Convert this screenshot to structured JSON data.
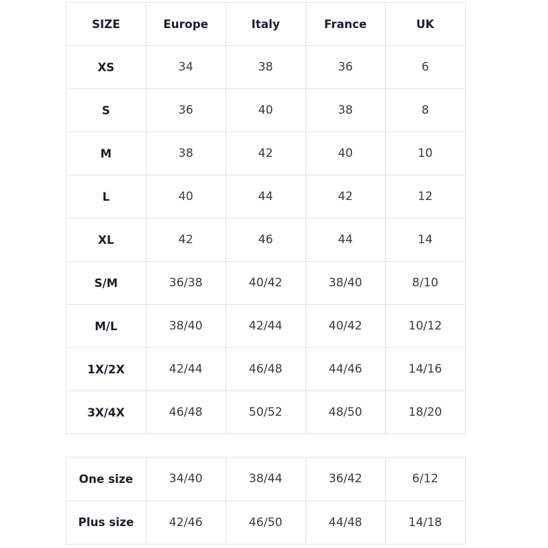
{
  "main_table": {
    "headers": [
      "SIZE",
      "Europe",
      "Italy",
      "France",
      "UK"
    ],
    "rows": [
      [
        "XS",
        "34",
        "38",
        "36",
        "6"
      ],
      [
        "S",
        "36",
        "40",
        "38",
        "8"
      ],
      [
        "M",
        "38",
        "42",
        "40",
        "10"
      ],
      [
        "L",
        "40",
        "44",
        "42",
        "12"
      ],
      [
        "XL",
        "42",
        "46",
        "44",
        "14"
      ],
      [
        "S/M",
        "36/38",
        "40/42",
        "38/40",
        "8/10"
      ],
      [
        "M/L",
        "38/40",
        "42/44",
        "40/42",
        "10/12"
      ],
      [
        "1X/2X",
        "42/44",
        "46/48",
        "44/46",
        "14/16"
      ],
      [
        "3X/4X",
        "46/48",
        "50/52",
        "48/50",
        "18/20"
      ]
    ]
  },
  "extra_table": {
    "rows": [
      [
        "One size",
        "34/40",
        "38/44",
        "36/42",
        "6/12"
      ],
      [
        "Plus size",
        "42/46",
        "46/50",
        "44/48",
        "14/18"
      ]
    ]
  }
}
